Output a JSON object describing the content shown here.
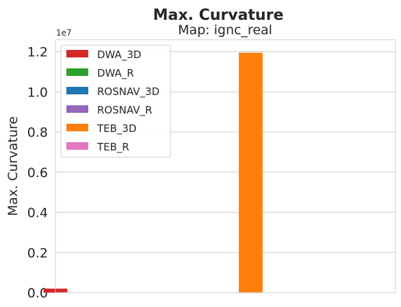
{
  "chart_data": {
    "type": "bar",
    "title": "Max. Curvature",
    "subtitle": "Map: ignc_real",
    "ylabel": "Max. Curvature",
    "xlabel": "",
    "y_offset_label": "1e7",
    "ylim": [
      0,
      1.26
    ],
    "yticks": [
      "0.0",
      "0.2",
      "0.4",
      "0.6",
      "0.8",
      "1.0",
      "1.2"
    ],
    "ytick_values": [
      0.0,
      0.2,
      0.4,
      0.6,
      0.8,
      1.0,
      1.2
    ],
    "grid": true,
    "legend_position": "top-left",
    "series": [
      {
        "name": "DWA_3D",
        "color": "#d62728",
        "value": 0.02
      },
      {
        "name": "DWA_R",
        "color": "#2ca02c",
        "value": 0
      },
      {
        "name": "ROSNAV_3D",
        "color": "#1f77b4",
        "value": 0
      },
      {
        "name": "ROSNAV_R",
        "color": "#9467bd",
        "value": 0
      },
      {
        "name": "TEB_3D",
        "color": "#ff7f0e",
        "value": 1.195
      },
      {
        "name": "TEB_R",
        "color": "#e377c2",
        "value": 0
      }
    ]
  }
}
